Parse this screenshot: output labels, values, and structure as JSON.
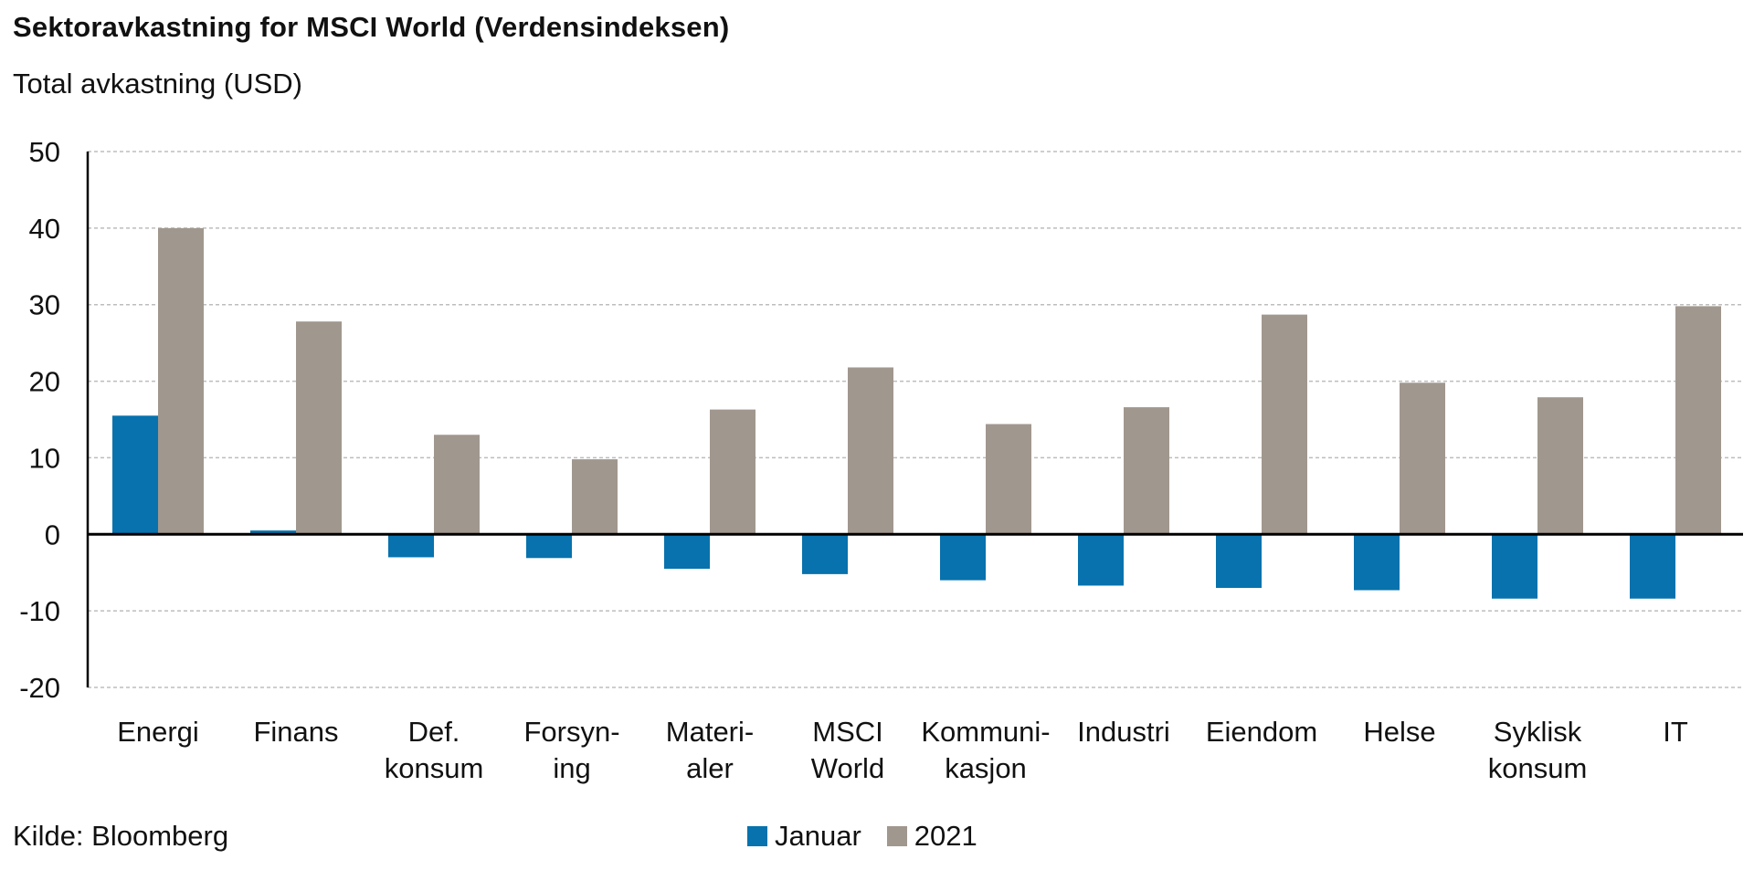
{
  "title": "Sektoravkastning for MSCI World (Verdensindeksen)",
  "subtitle": "Total avkastning (USD)",
  "source": "Kilde: Bloomberg",
  "colors": {
    "januar": "#0772ad",
    "y2021": "#a0978e",
    "grid": "#bdbdbd",
    "axis": "#000000"
  },
  "chart_data": {
    "type": "bar",
    "title": "Sektoravkastning for MSCI World (Verdensindeksen)",
    "ylabel": "Total avkastning (USD)",
    "xlabel": "",
    "ylim": [
      -20,
      50
    ],
    "yticks": [
      -20,
      -10,
      0,
      10,
      20,
      30,
      40,
      50
    ],
    "grid": true,
    "legend_position": "bottom-center",
    "categories": [
      [
        "Energi"
      ],
      [
        "Finans"
      ],
      [
        "Def.",
        "konsum"
      ],
      [
        "Forsyn-",
        "ing"
      ],
      [
        "Materi-",
        "aler"
      ],
      [
        "MSCI",
        "World"
      ],
      [
        "Kommuni-",
        "kasjon"
      ],
      [
        "Industri"
      ],
      [
        "Eiendom"
      ],
      [
        "Helse"
      ],
      [
        "Syklisk",
        "konsum"
      ],
      [
        "IT"
      ]
    ],
    "series": [
      {
        "name": "Januar",
        "values": [
          15.5,
          0.5,
          -3.0,
          -3.1,
          -4.5,
          -5.2,
          -6.0,
          -6.7,
          -7.0,
          -7.3,
          -8.4,
          -8.4
        ]
      },
      {
        "name": "2021",
        "values": [
          40.0,
          27.8,
          13.0,
          9.8,
          16.3,
          21.8,
          14.4,
          16.6,
          28.7,
          19.8,
          17.9,
          29.8
        ]
      }
    ]
  }
}
